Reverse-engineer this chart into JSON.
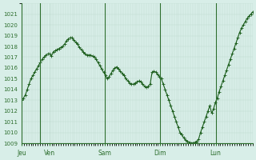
{
  "title": "",
  "bg_color": "#d8eee8",
  "plot_bg_color": "#d8eee8",
  "line_color": "#1a5c1a",
  "marker_color": "#1a5c1a",
  "grid_color": "#b0cfc0",
  "axis_color": "#2d6e2d",
  "tick_label_color": "#2d6e2d",
  "ylim": [
    1009,
    1022
  ],
  "yticks": [
    1009,
    1010,
    1011,
    1012,
    1013,
    1014,
    1015,
    1016,
    1017,
    1018,
    1019,
    1020,
    1021
  ],
  "xtick_labels": [
    "Jeu",
    "Ven",
    "Sam",
    "Dim",
    "Lun"
  ],
  "xtick_positions": [
    0,
    24,
    72,
    120,
    168
  ],
  "vline_positions": [
    16,
    72,
    120,
    168
  ],
  "total_hours": 200,
  "y_values": [
    1013.0,
    1013.2,
    1013.5,
    1014.0,
    1014.5,
    1015.0,
    1015.3,
    1015.6,
    1015.9,
    1016.2,
    1016.5,
    1016.8,
    1017.0,
    1017.2,
    1017.3,
    1017.3,
    1017.1,
    1017.5,
    1017.6,
    1017.7,
    1017.8,
    1017.9,
    1018.0,
    1018.2,
    1018.5,
    1018.7,
    1018.8,
    1018.8,
    1018.6,
    1018.4,
    1018.2,
    1017.9,
    1017.7,
    1017.5,
    1017.3,
    1017.2,
    1017.2,
    1017.2,
    1017.1,
    1017.0,
    1016.8,
    1016.5,
    1016.2,
    1015.9,
    1015.6,
    1015.3,
    1015.0,
    1015.2,
    1015.5,
    1015.8,
    1016.0,
    1016.1,
    1015.9,
    1015.7,
    1015.5,
    1015.3,
    1015.0,
    1014.8,
    1014.6,
    1014.5,
    1014.5,
    1014.6,
    1014.7,
    1014.8,
    1014.7,
    1014.5,
    1014.3,
    1014.2,
    1014.3,
    1014.5,
    1015.6,
    1015.7,
    1015.6,
    1015.4,
    1015.2,
    1015.0,
    1014.5,
    1014.0,
    1013.5,
    1013.0,
    1012.5,
    1012.0,
    1011.5,
    1011.0,
    1010.5,
    1010.0,
    1009.8,
    1009.5,
    1009.3,
    1009.2,
    1009.1,
    1009.0,
    1009.05,
    1009.1,
    1009.2,
    1009.4,
    1010.0,
    1010.5,
    1011.0,
    1011.5,
    1012.0,
    1012.5,
    1011.8,
    1012.2,
    1012.8,
    1013.2,
    1013.8,
    1014.3,
    1014.8,
    1015.3,
    1015.8,
    1016.3,
    1016.8,
    1017.3,
    1017.8,
    1018.3,
    1018.8,
    1019.3,
    1019.7,
    1020.0,
    1020.3,
    1020.6,
    1020.8,
    1021.0,
    1021.2
  ]
}
